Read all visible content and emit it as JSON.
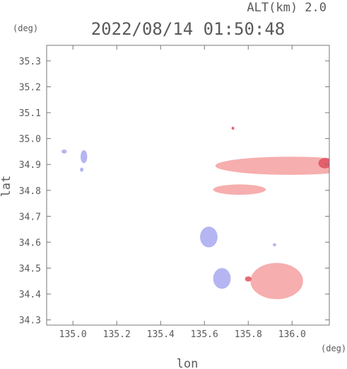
{
  "header": {
    "altitude_label": "ALT(km) 2.0",
    "timestamp": "2022/08/14 01:50:48"
  },
  "chart_data": {
    "type": "scatter",
    "title": "2022/08/14 01:50:48",
    "subtitle": "ALT(km) 2.0",
    "xlabel": "lon",
    "ylabel": "lat",
    "x_unit": "(deg)",
    "y_unit": "(deg)",
    "xlim": [
      134.88,
      136.17
    ],
    "ylim": [
      34.28,
      35.36
    ],
    "x_ticks": [
      135.0,
      135.2,
      135.4,
      135.6,
      135.8,
      136.0
    ],
    "x_tick_labels": [
      "135.0",
      "135.2",
      "135.4",
      "135.6",
      "135.8",
      "136.0"
    ],
    "y_ticks": [
      34.3,
      34.4,
      34.5,
      34.6,
      34.7,
      34.8,
      34.9,
      35.0,
      35.1,
      35.2,
      35.3
    ],
    "y_tick_labels": [
      "34.3",
      "34.4",
      "34.5",
      "34.6",
      "34.7",
      "34.8",
      "34.9",
      "35.0",
      "35.1",
      "35.2",
      "35.3"
    ],
    "grid": false,
    "colors": {
      "positive": "#f4a0a0",
      "positive_strong": "#e05060",
      "negative": "#a8a8f0",
      "negative_strong": "#6060e0",
      "axis": "#777777"
    },
    "echo_regions": [
      {
        "name": "north-band",
        "sign": "positive",
        "lon": 135.99,
        "lat": 34.895,
        "dlon": 0.34,
        "dlat": 0.035
      },
      {
        "name": "north-band-east-core",
        "sign": "positive_strong",
        "lon": 136.15,
        "lat": 34.905,
        "dlon": 0.03,
        "dlat": 0.02
      },
      {
        "name": "mid-band",
        "sign": "positive",
        "lon": 135.76,
        "lat": 34.803,
        "dlon": 0.12,
        "dlat": 0.02
      },
      {
        "name": "south-east-cluster",
        "sign": "positive",
        "lon": 135.93,
        "lat": 34.45,
        "dlon": 0.12,
        "dlat": 0.07
      },
      {
        "name": "south-west-edge",
        "sign": "positive_strong",
        "lon": 135.8,
        "lat": 34.458,
        "dlon": 0.015,
        "dlat": 0.01
      },
      {
        "name": "central-cluster",
        "sign": "negative",
        "lon": 135.62,
        "lat": 34.62,
        "dlon": 0.04,
        "dlat": 0.04
      },
      {
        "name": "south-central-cluster",
        "sign": "negative",
        "lon": 135.68,
        "lat": 34.46,
        "dlon": 0.04,
        "dlat": 0.04
      },
      {
        "name": "west-speck-1",
        "sign": "negative",
        "lon": 134.96,
        "lat": 34.95,
        "dlon": 0.012,
        "dlat": 0.008
      },
      {
        "name": "west-speck-2",
        "sign": "negative",
        "lon": 135.05,
        "lat": 34.93,
        "dlon": 0.015,
        "dlat": 0.025
      },
      {
        "name": "west-speck-3",
        "sign": "negative",
        "lon": 135.04,
        "lat": 34.88,
        "dlon": 0.008,
        "dlat": 0.008
      },
      {
        "name": "speck-34-59",
        "sign": "negative",
        "lon": 135.92,
        "lat": 34.59,
        "dlon": 0.008,
        "dlat": 0.006
      },
      {
        "name": "speck-35-04",
        "sign": "positive_strong",
        "lon": 135.73,
        "lat": 35.04,
        "dlon": 0.006,
        "dlat": 0.006
      }
    ]
  }
}
